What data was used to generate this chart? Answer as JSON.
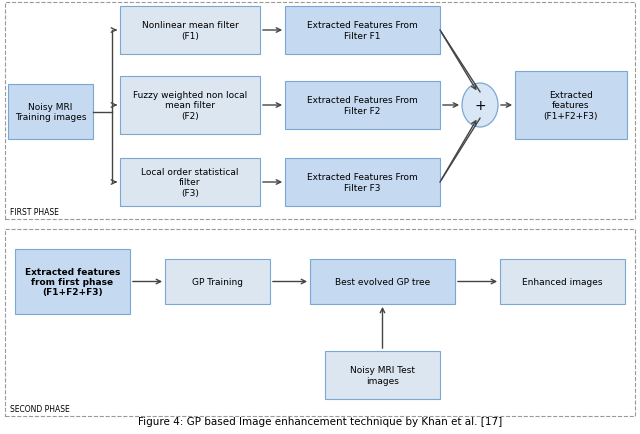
{
  "fig_width": 6.4,
  "fig_height": 4.35,
  "dpi": 100,
  "bg_color": "#ffffff",
  "caption": "Figure 4: GP based Image enhancement technique by Khan et al. [17]",
  "first_phase_label": "FIRST PHASE",
  "second_phase_label": "SECOND PHASE",
  "arrow_color": "#444444",
  "box_edge_color": "#7ba7d4",
  "box_fill_blue": "#c5d9f1",
  "box_fill_light": "#dce6f1",
  "box_fill_gradient_top": "#8db4e2",
  "box_fill_gradient_bot": "#dce6f1"
}
